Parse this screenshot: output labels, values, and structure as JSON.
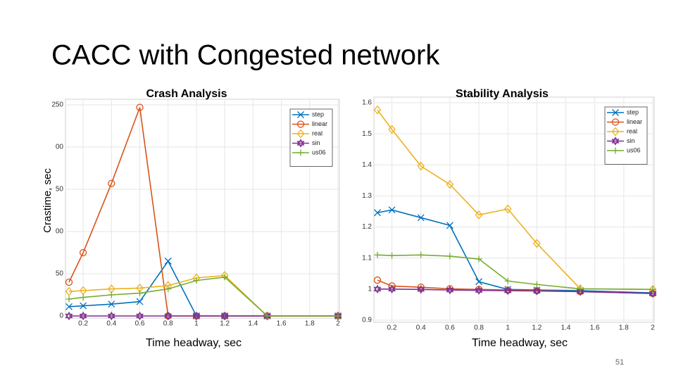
{
  "slide": {
    "title": "CACC  with Congested network",
    "page_number": "51"
  },
  "chart_data": [
    {
      "type": "line",
      "title": "Crash Analysis",
      "y_label": "Crastime, sec",
      "x_label": "Time headway, sec",
      "x": [
        0.1,
        0.2,
        0.4,
        0.6,
        0.8,
        1,
        1.2,
        1.5,
        2
      ],
      "xlim": [
        0.1,
        2
      ],
      "xticks": [
        0.2,
        0.4,
        0.6,
        0.8,
        1,
        1.2,
        1.4,
        1.6,
        1.8,
        2
      ],
      "ylim": [
        0,
        250
      ],
      "yticks": [
        0,
        {
          "value": 50,
          "label": "50"
        },
        {
          "value": 100,
          "label": "00"
        },
        {
          "value": 150,
          "label": "50"
        },
        {
          "value": 200,
          "label": "00"
        },
        250
      ],
      "grid": true,
      "legend": "upper right",
      "series": [
        {
          "name": "step",
          "color": "#0072bd",
          "marker": "x",
          "values": [
            11,
            12,
            14,
            17,
            65,
            0,
            0,
            0,
            0
          ]
        },
        {
          "name": "linear",
          "color": "#d95319",
          "marker": "o",
          "values": [
            40,
            75,
            157,
            247,
            0,
            0,
            0,
            0,
            0
          ]
        },
        {
          "name": "real",
          "color": "#edb120",
          "marker": "d",
          "values": [
            29,
            30,
            32,
            33,
            36,
            45,
            48,
            0,
            0
          ]
        },
        {
          "name": "sin",
          "color": "#7e2f8e",
          "marker": "hexagram",
          "values": [
            0,
            0,
            0,
            0,
            0,
            0,
            0,
            0,
            0
          ]
        },
        {
          "name": "us06",
          "color": "#77ac30",
          "marker": "+",
          "values": [
            20,
            22,
            25,
            27,
            32,
            42,
            46,
            0,
            0
          ]
        }
      ]
    },
    {
      "type": "line",
      "title": "Stability Analysis",
      "x_label": "Time headway, sec",
      "x": [
        0.1,
        0.2,
        0.4,
        0.6,
        0.8,
        1,
        1.2,
        1.5,
        2
      ],
      "xlim": [
        0.1,
        2
      ],
      "xticks": [
        0.2,
        0.4,
        0.6,
        0.8,
        1,
        1.2,
        1.4,
        1.6,
        1.8,
        2
      ],
      "ylim": [
        0.9,
        1.6
      ],
      "yticks": [
        0.9,
        1,
        1.1,
        1.2,
        1.3,
        1.4,
        1.5,
        1.6
      ],
      "grid": true,
      "legend": "upper right",
      "series": [
        {
          "name": "step",
          "color": "#0072bd",
          "marker": "x",
          "values": [
            1.246,
            1.255,
            1.23,
            1.205,
            1.024,
            0.999,
            0.997,
            0.995,
            0.988
          ]
        },
        {
          "name": "linear",
          "color": "#d95319",
          "marker": "o",
          "values": [
            1.029,
            1.01,
            1.006,
            1.001,
            0.999,
            0.997,
            0.995,
            0.992,
            0.986
          ]
        },
        {
          "name": "real",
          "color": "#edb120",
          "marker": "d",
          "values": [
            1.577,
            1.514,
            1.396,
            1.337,
            1.239,
            1.258,
            1.147,
            1.001,
            0.999
          ]
        },
        {
          "name": "sin",
          "color": "#7e2f8e",
          "marker": "hexagram",
          "values": [
            1.0,
            1.0,
            0.999,
            0.997,
            0.996,
            0.995,
            0.994,
            0.992,
            0.986
          ]
        },
        {
          "name": "us06",
          "color": "#77ac30",
          "marker": "+",
          "values": [
            1.11,
            1.108,
            1.11,
            1.106,
            1.097,
            1.026,
            1.015,
            1.001,
            0.999
          ]
        }
      ]
    }
  ]
}
